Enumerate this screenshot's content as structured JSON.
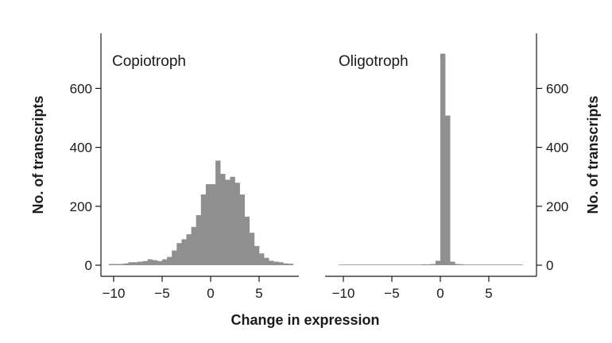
{
  "chart_data": [
    {
      "type": "bar",
      "title": "Copiotroph",
      "xlabel": "Change in expression",
      "ylabel": "No. of transcripts",
      "xlim": [
        -11,
        9
      ],
      "ylim": [
        0,
        760
      ],
      "xticks": [
        -10,
        -5,
        0,
        5
      ],
      "yticks": [
        0,
        200,
        400,
        600
      ],
      "x_tick_labels": [
        "−10",
        "−5",
        "0",
        "5"
      ],
      "y_tick_labels": [
        "0",
        "200",
        "400",
        "600"
      ],
      "bin_width": 0.5,
      "bin_start": -10.5,
      "values": [
        4,
        4,
        4,
        6,
        10,
        10,
        12,
        14,
        20,
        17,
        14,
        20,
        28,
        50,
        75,
        88,
        105,
        130,
        170,
        240,
        275,
        275,
        355,
        310,
        290,
        300,
        280,
        240,
        165,
        110,
        65,
        40,
        25,
        15,
        12,
        10,
        6,
        5
      ]
    },
    {
      "type": "bar",
      "title": "Oligotroph",
      "xlabel": "Change in expression",
      "ylabel": "No. of transcripts",
      "xlim": [
        -11,
        9
      ],
      "ylim": [
        0,
        760
      ],
      "xticks": [
        -10,
        -5,
        0,
        5
      ],
      "yticks": [
        0,
        200,
        400,
        600
      ],
      "x_tick_labels": [
        "−10",
        "−5",
        "0",
        "5"
      ],
      "y_tick_labels": [
        "0",
        "200",
        "400",
        "600"
      ],
      "bin_width": 0.5,
      "bin_start": -10.5,
      "values": [
        2,
        2,
        2,
        2,
        2,
        2,
        2,
        2,
        2,
        2,
        2,
        2,
        2,
        2,
        2,
        2,
        2,
        3,
        3,
        4,
        15,
        718,
        508,
        12,
        4,
        3,
        2,
        2,
        2,
        2,
        2,
        2,
        2,
        2,
        2,
        2,
        2,
        2
      ]
    }
  ],
  "shared_xlabel": "Change in expression"
}
